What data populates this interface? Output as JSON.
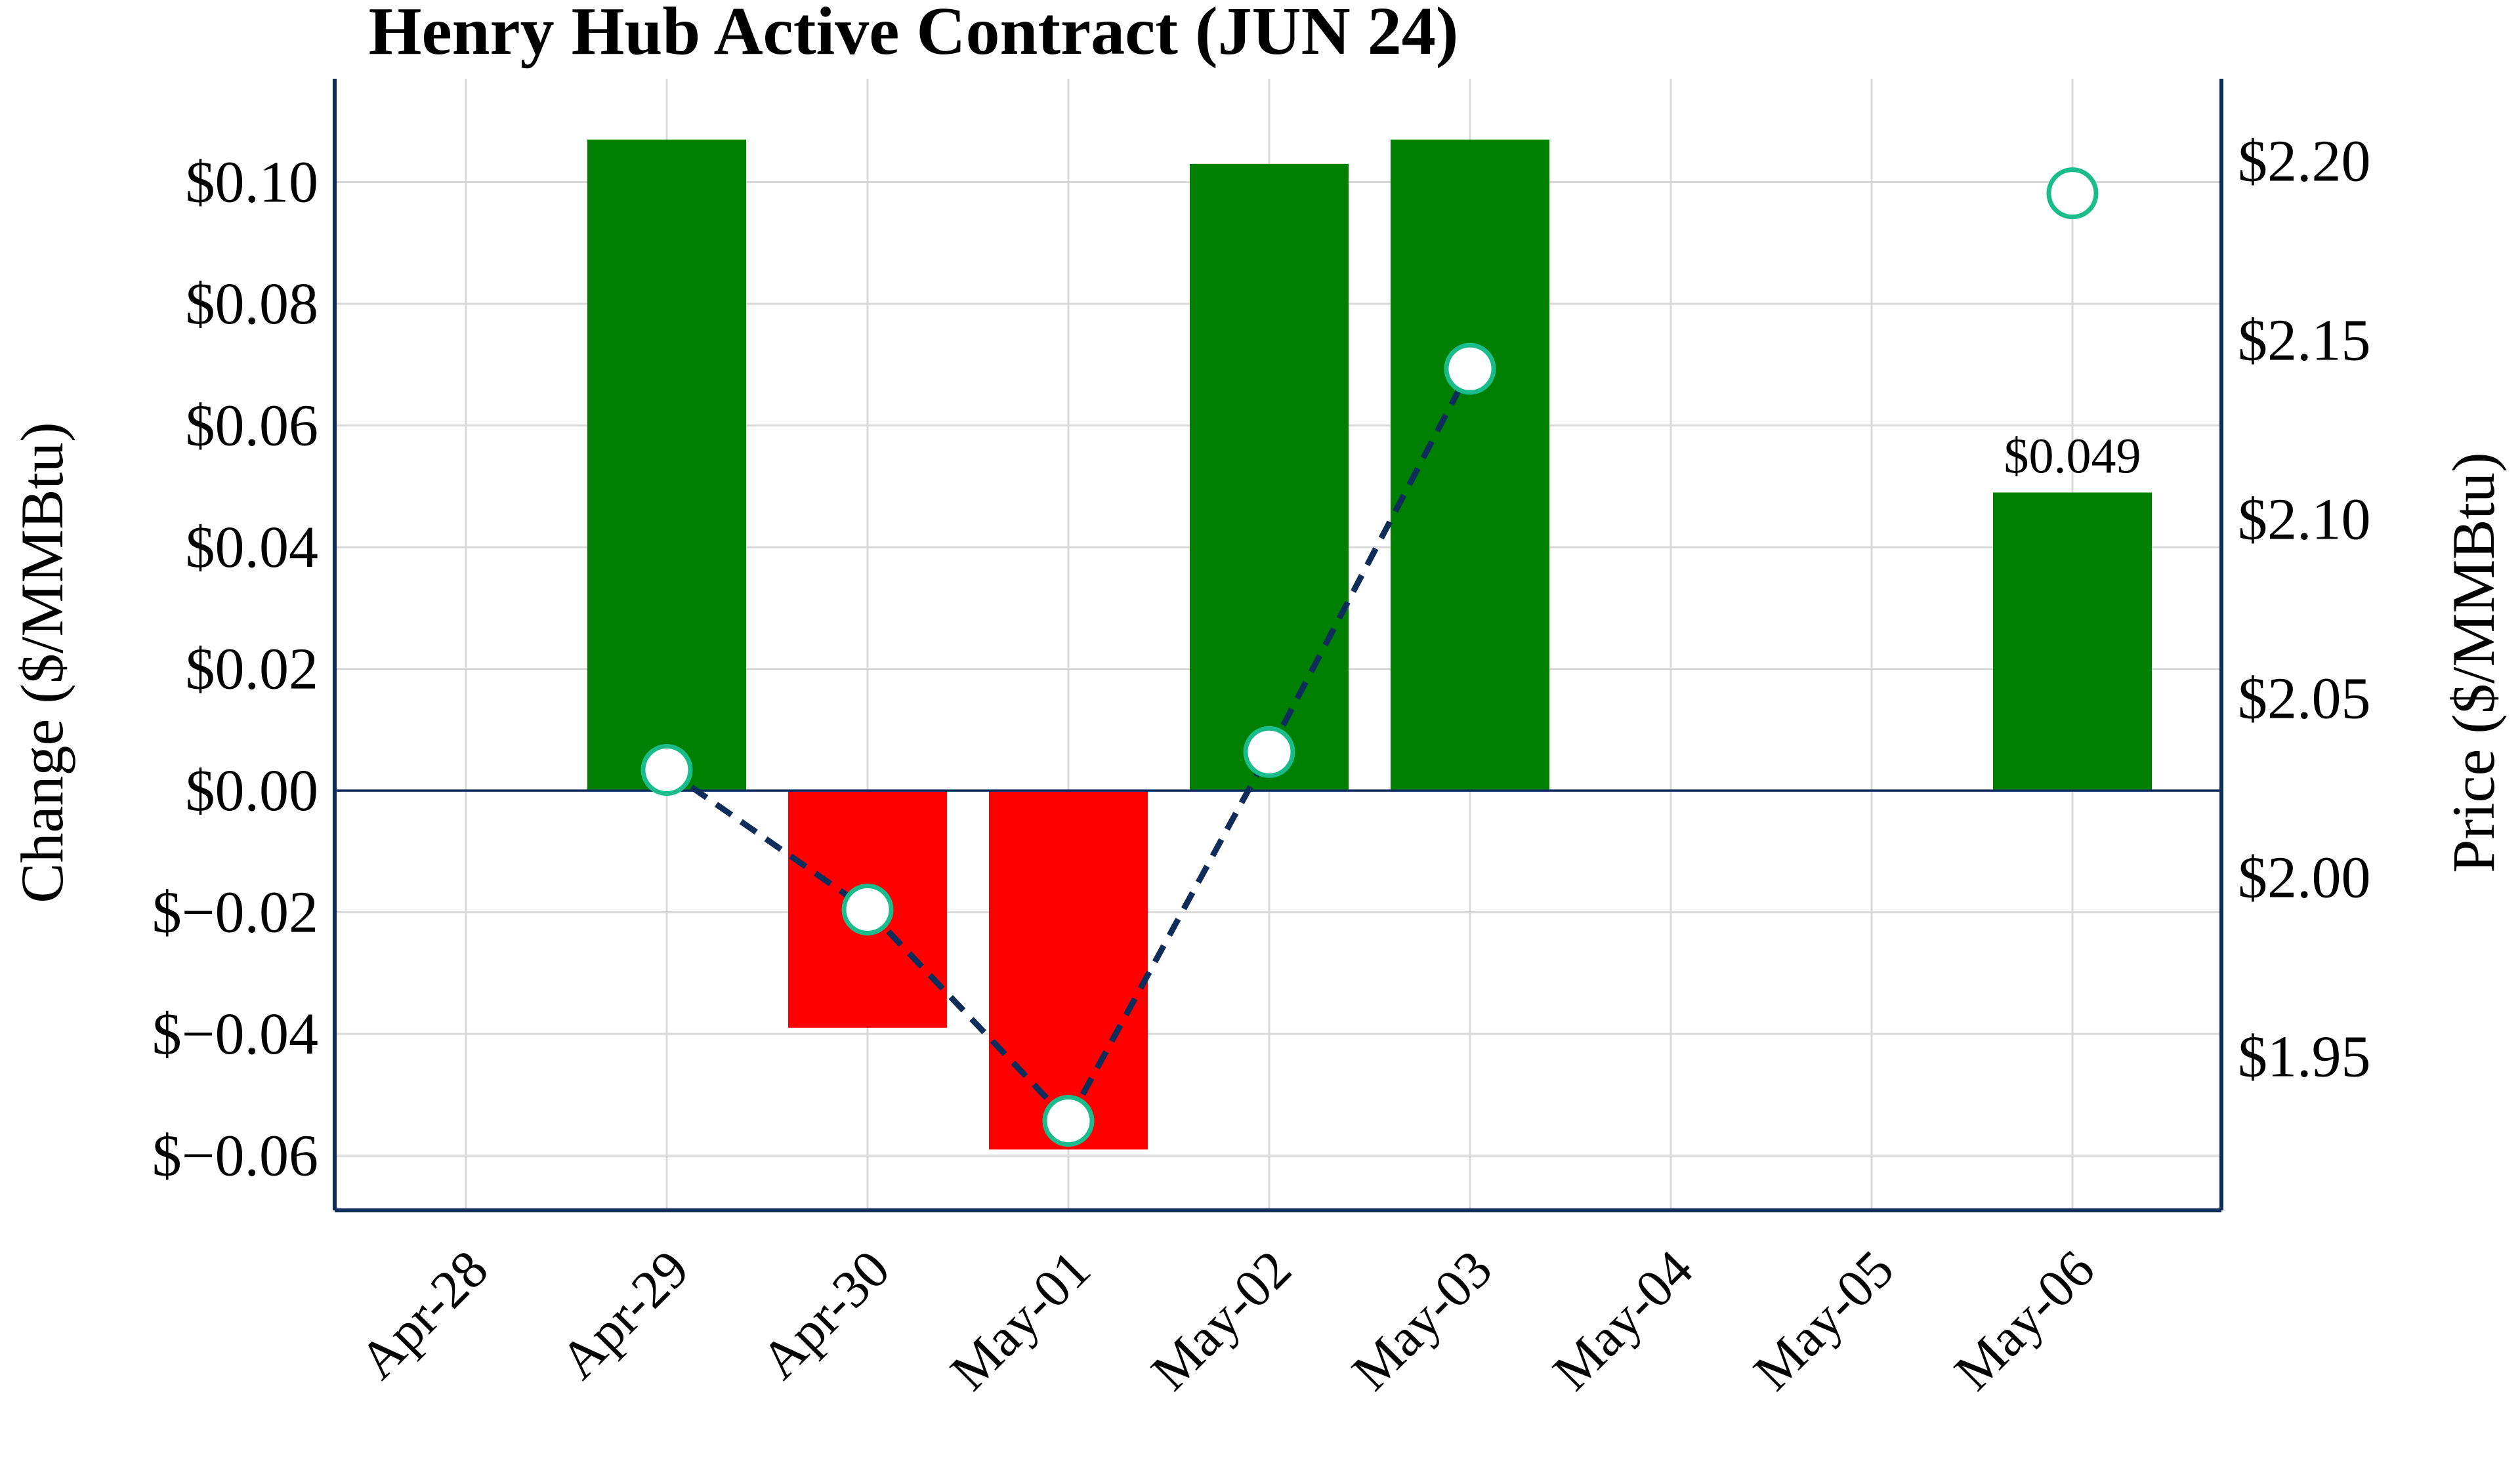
{
  "chart_data": {
    "type": "bar",
    "title": "Henry Hub Active Contract (JUN 24)",
    "categories": [
      "Apr-28",
      "Apr-29",
      "Apr-30",
      "May-01",
      "May-02",
      "May-03",
      "May-04",
      "May-05",
      "May-06"
    ],
    "left_axis": {
      "label": "Change ($/MMBtu)",
      "ylim": [
        -0.069,
        0.117
      ],
      "ticks": [
        0.1,
        0.08,
        0.06,
        0.04,
        0.02,
        0.0,
        -0.02,
        -0.04,
        -0.06
      ],
      "tick_labels": [
        "$0.10",
        "$0.08",
        "$0.06",
        "$0.04",
        "$0.02",
        "$0.00",
        "$−0.02",
        "$−0.04",
        "$−0.06"
      ]
    },
    "right_axis": {
      "label": "Price ($/MMBtu)",
      "ylim": [
        1.907,
        2.223
      ],
      "ticks": [
        2.2,
        2.15,
        2.1,
        2.05,
        2.0,
        1.95
      ],
      "tick_labels": [
        "$2.20",
        "$2.15",
        "$2.10",
        "$2.05",
        "$2.00",
        "$1.95"
      ]
    },
    "series": [
      {
        "name": "Change",
        "kind": "bar",
        "values": [
          null,
          0.107,
          -0.039,
          -0.059,
          0.103,
          0.107,
          null,
          null,
          0.049
        ]
      },
      {
        "name": "Price",
        "kind": "line",
        "values": [
          null,
          2.03,
          1.991,
          1.932,
          2.035,
          2.142,
          null,
          null,
          2.191
        ]
      }
    ],
    "annotations": [
      {
        "category": "May-06",
        "text": "$0.049"
      }
    ],
    "grid": true,
    "colors": {
      "positive_bar": "#008000",
      "negative_bar": "#ff0000",
      "line": "#0e2d5a",
      "marker_edge": "#1abc8c",
      "marker_fill": "#ffffff",
      "axis": "#0e2d5a",
      "grid": "#d9d9d9",
      "zero_line": "#0e2d5a"
    }
  }
}
